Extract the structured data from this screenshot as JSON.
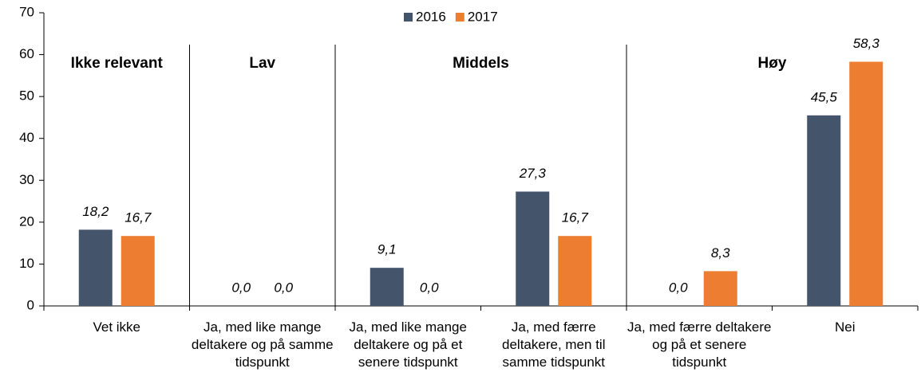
{
  "chart_data": {
    "type": "bar",
    "categories": [
      "Vet ikke",
      "Ja, med like mange deltakere og på samme tidspunkt",
      "Ja, med like mange deltakere og på et senere tidspunkt",
      "Ja, med færre deltakere, men til samme tidspunkt",
      "Ja, med færre deltakere og på et senere tidspunkt",
      "Nei"
    ],
    "series": [
      {
        "name": "2016",
        "color": "#44546a",
        "values": [
          18.2,
          0,
          9.1,
          27.3,
          0,
          45.5
        ],
        "value_labels": [
          "18,2",
          "0,0",
          "9,1",
          "27,3",
          "0,0",
          "45,5"
        ]
      },
      {
        "name": "2017",
        "color": "#ed7d31",
        "values": [
          16.7,
          0,
          0,
          16.7,
          8.3,
          58.3
        ],
        "value_labels": [
          "16,7",
          "0,0",
          "0,0",
          "16,7",
          "8,3",
          "58,3"
        ]
      }
    ],
    "annotations": [
      "Ikke relevant",
      "Lav",
      "Middels",
      "Høy"
    ],
    "ylim": [
      0,
      70
    ],
    "yticks": [
      0,
      10,
      20,
      30,
      40,
      50,
      60,
      70
    ],
    "legend": "top"
  }
}
